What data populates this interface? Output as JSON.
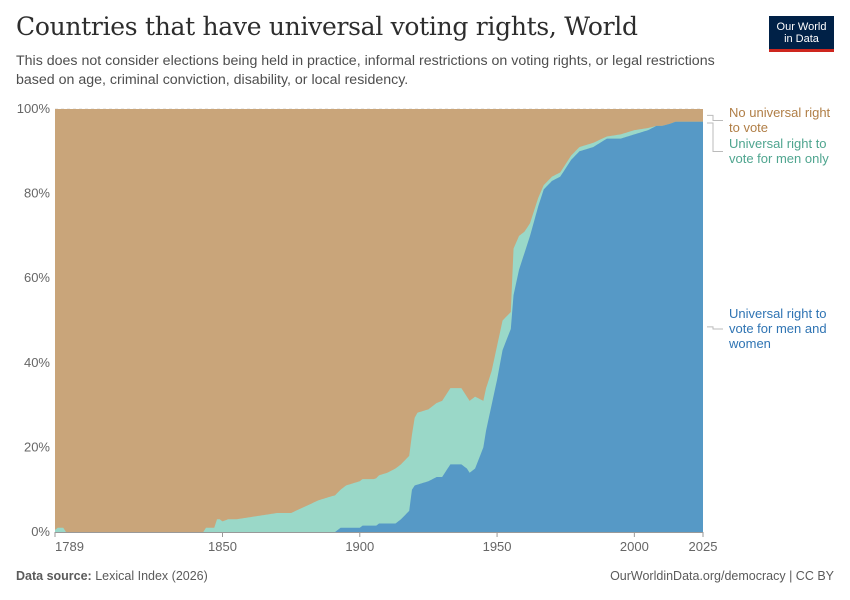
{
  "header": {
    "title": "Countries that have universal voting rights, World",
    "subtitle": "This does not consider elections being held in practice, informal restrictions on voting rights, or legal restrictions based on age, criminal conviction, disability, or local residency.",
    "logo_line1": "Our World",
    "logo_line2": "in Data"
  },
  "footer": {
    "source_label": "Data source:",
    "source_value": "Lexical Index (2026)",
    "link": "OurWorldinData.org/democracy | CC BY"
  },
  "colors": {
    "none": "#c9a57a",
    "men_only": "#9ad8c8",
    "universal": "#5699c6",
    "none_text": "#b07e46",
    "men_only_text": "#4fa58f",
    "universal_text": "#2f74b3"
  },
  "chart_data": {
    "type": "area",
    "stacked": "percent",
    "xlim": [
      1789,
      2025
    ],
    "ylim": [
      0,
      100
    ],
    "x_ticks": [
      "1789",
      "1850",
      "1900",
      "1950",
      "2000",
      "2025"
    ],
    "y_ticks": [
      "0%",
      "20%",
      "40%",
      "60%",
      "80%",
      "100%"
    ],
    "grid": "horizontal dashed",
    "legend_placement": "right, inline",
    "series": [
      {
        "name": "Universal right to vote for men and women",
        "label_lines": [
          "Universal right to",
          "vote for men and",
          "women"
        ],
        "x": [
          1789,
          1891,
          1893,
          1900,
          1901,
          1906,
          1907,
          1913,
          1915,
          1918,
          1919,
          1920,
          1925,
          1928,
          1930,
          1931,
          1933,
          1935,
          1937,
          1939,
          1940,
          1942,
          1945,
          1946,
          1948,
          1950,
          1952,
          1955,
          1956,
          1958,
          1960,
          1962,
          1965,
          1967,
          1970,
          1973,
          1975,
          1977,
          1980,
          1985,
          1990,
          1995,
          2000,
          2005,
          2008,
          2010,
          2013,
          2015,
          2020,
          2025
        ],
        "values": [
          0,
          0,
          1,
          1,
          1.5,
          1.5,
          2,
          2,
          3,
          5,
          10,
          11,
          12,
          13,
          13,
          14,
          16,
          16,
          16,
          15,
          14,
          15,
          20,
          24,
          30,
          36,
          43,
          48,
          56,
          62,
          66,
          70,
          77,
          81,
          83,
          84,
          86,
          88,
          90,
          91,
          93,
          93,
          94,
          95,
          96,
          96,
          96.5,
          97,
          97,
          97
        ]
      },
      {
        "name": "Universal right to vote for men only",
        "label_lines": [
          "Universal right to",
          "vote for men only"
        ],
        "x": [
          1789,
          1790,
          1792,
          1793,
          1843,
          1844,
          1847,
          1848,
          1849,
          1850,
          1852,
          1855,
          1860,
          1865,
          1870,
          1875,
          1880,
          1885,
          1890,
          1893,
          1895,
          1900,
          1905,
          1910,
          1913,
          1915,
          1917,
          1918,
          1919,
          1920,
          1921,
          1925,
          1928,
          1930,
          1931,
          1933,
          1935,
          1937,
          1939,
          1940,
          1942,
          1945,
          1946,
          1948,
          1950,
          1952,
          1955,
          1956,
          1958,
          1960,
          1962,
          1965,
          1967,
          1970,
          1973,
          1975,
          1977,
          1980,
          1985,
          1990,
          1995,
          2000,
          2005,
          2008,
          2010,
          2013,
          2015,
          2020,
          2025
        ],
        "values": [
          0.5,
          1,
          1,
          0,
          0,
          1,
          1,
          3,
          3,
          2.5,
          3,
          3,
          3.5,
          4,
          4.5,
          4.5,
          6,
          7.5,
          8.5,
          9,
          10,
          11,
          11,
          12,
          13,
          13,
          13,
          13,
          13,
          16,
          17,
          17,
          17.5,
          18,
          18,
          18,
          18,
          18,
          17,
          17,
          17,
          11,
          10,
          8,
          8,
          7,
          4,
          11,
          8,
          5,
          3,
          2,
          1,
          1,
          1,
          1,
          1,
          1,
          1,
          0.5,
          1,
          1,
          0.5,
          0,
          0,
          0,
          0,
          0,
          0
        ]
      },
      {
        "name": "No universal right to vote",
        "label_lines": [
          "No universal right",
          "to vote"
        ],
        "fills_to": 100
      }
    ]
  }
}
